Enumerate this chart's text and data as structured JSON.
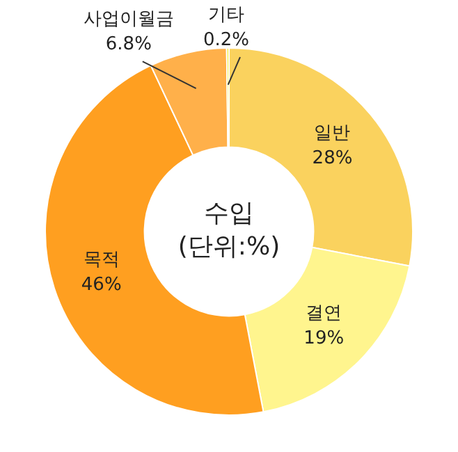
{
  "chart_data": {
    "type": "donut",
    "title": "수입",
    "subtitle": "(단위:%)",
    "categories": [
      "일반",
      "결연",
      "목적",
      "사업이월금",
      "기타"
    ],
    "values": [
      28,
      19,
      46,
      6.8,
      0.2
    ],
    "colors": [
      "#fad25e",
      "#fff58e",
      "#ff9f20",
      "#ffb04a",
      "#f4ee2c"
    ],
    "value_labels": [
      "28%",
      "19%",
      "46%",
      "6.8%",
      "0.2%"
    ]
  }
}
